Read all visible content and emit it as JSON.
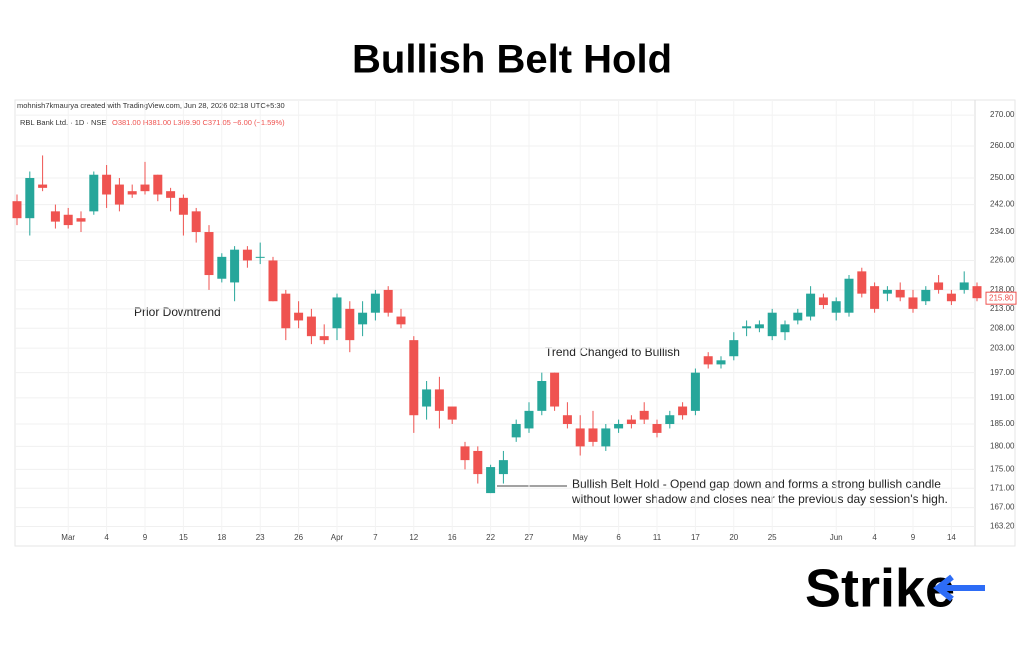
{
  "chart_data": {
    "type": "candlestick",
    "title": "Bullish Belt Hold",
    "credit": "mohnish7kmaurya created with TradingView.com, Jun 28, 2026 02:18 UTC+5:30",
    "symbol": "RBL Bank Ltd. · 1D · NSE",
    "ohlc_header": "O381.00 H381.00 L369.90 C371.05 −6.00 (−1.59%)",
    "annotations": [
      "Prior Downtrend",
      "Trend Changed to Bullish",
      "Bullish Belt Hold - Opend gap down and forms a strong bullish candle",
      "without lower shadow and closes near the previous day session's high."
    ],
    "logo": "Strike",
    "log_scale": true,
    "up_color": "#26a69a",
    "down_color": "#ef5350",
    "categories": [
      null,
      null,
      null,
      null,
      "Mar",
      null,
      null,
      "4",
      null,
      null,
      "9",
      null,
      null,
      "15",
      null,
      null,
      "18",
      null,
      null,
      "23",
      null,
      null,
      "26",
      null,
      null,
      "Apr",
      null,
      null,
      "7",
      null,
      null,
      "12",
      null,
      null,
      "16",
      null,
      null,
      "22",
      null,
      null,
      "27",
      null,
      null,
      null,
      "May",
      null,
      null,
      "6",
      null,
      null,
      "11",
      null,
      null,
      "17",
      null,
      null,
      "20",
      null,
      null,
      "25",
      null,
      null,
      null,
      null,
      "Jun",
      null,
      null,
      "4",
      null,
      null,
      "9",
      null,
      null,
      "14",
      null,
      null
    ],
    "open": [
      243,
      238,
      248,
      240,
      239,
      238,
      240,
      251,
      248,
      246,
      248,
      251,
      246,
      244,
      240,
      234,
      221,
      220,
      229,
      227,
      226,
      217,
      212,
      211,
      206,
      208,
      213,
      209,
      212,
      218,
      211,
      205,
      189,
      193,
      189,
      180,
      179,
      170,
      174,
      182,
      184,
      188,
      197,
      187,
      184,
      184,
      180,
      184,
      186,
      188,
      185,
      185,
      189,
      188,
      201,
      199,
      201,
      208,
      208,
      206,
      207,
      210,
      211,
      216,
      212,
      212,
      223,
      219,
      217,
      218,
      216,
      215,
      220,
      217,
      218,
      219
    ],
    "high": [
      245,
      252,
      257,
      242,
      241,
      240,
      252,
      254,
      250,
      248,
      255,
      251,
      247,
      245,
      241,
      236,
      228,
      230,
      230,
      231,
      227,
      218,
      215,
      213,
      209,
      217,
      215,
      215,
      218,
      219,
      213,
      206,
      195,
      196,
      189,
      181,
      180,
      176,
      179,
      186,
      190,
      197,
      197,
      190,
      187,
      188,
      185,
      186,
      187,
      190,
      186,
      188,
      190,
      198,
      202,
      201,
      207,
      210,
      210,
      213,
      210,
      213,
      219,
      217,
      216,
      222,
      224,
      220,
      219,
      220,
      218,
      219,
      222,
      218,
      223,
      220
    ],
    "low": [
      236,
      233,
      246,
      235,
      235,
      234,
      239,
      241,
      240,
      244,
      245,
      243,
      240,
      233,
      231,
      218,
      220,
      215,
      224,
      225,
      215,
      205,
      208,
      204,
      204,
      205,
      202,
      206,
      210,
      211,
      208,
      183,
      186,
      184,
      185,
      175,
      172,
      170,
      172,
      181,
      183,
      187,
      188,
      184,
      178,
      180,
      179,
      183,
      184,
      185,
      182,
      184,
      186,
      187,
      198,
      198,
      200,
      206,
      207,
      205,
      205,
      209,
      210,
      213,
      210,
      211,
      216,
      212,
      215,
      215,
      212,
      214,
      217,
      214,
      217,
      215
    ],
    "close": [
      238,
      250,
      247,
      237,
      236,
      237,
      251,
      245,
      242,
      245,
      246,
      245,
      244,
      239,
      234,
      222,
      227,
      229,
      226,
      227,
      215,
      208,
      210,
      206,
      205,
      216,
      205,
      212,
      217,
      212,
      209,
      187,
      193,
      188,
      186,
      177,
      174,
      175.5,
      177,
      185,
      188,
      195,
      189,
      185,
      180,
      181,
      184,
      185,
      185,
      186,
      183,
      187,
      187,
      197,
      199,
      200,
      205,
      208.5,
      209,
      212,
      209,
      212,
      217,
      214,
      215,
      221,
      217,
      213,
      218,
      216,
      213,
      218,
      218,
      215,
      220,
      215.8
    ],
    "last_price_label": "215.80",
    "ylim": [
      161.5,
      270.7
    ],
    "yticks": [
      {
        "value": 270,
        "label": "270.00"
      },
      {
        "value": 260,
        "label": "260.00"
      },
      {
        "value": 250,
        "label": "250.00"
      },
      {
        "value": 242,
        "label": "242.00"
      },
      {
        "value": 234,
        "label": "234.00"
      },
      {
        "value": 226,
        "label": "226.00"
      },
      {
        "value": 218,
        "label": "218.00"
      },
      {
        "value": 213,
        "label": "213.00"
      },
      {
        "value": 208,
        "label": "208.00"
      },
      {
        "value": 203,
        "label": "203.00"
      },
      {
        "value": 197,
        "label": "197.00"
      },
      {
        "value": 191,
        "label": "191.00"
      },
      {
        "value": 185,
        "label": "185.00"
      },
      {
        "value": 180,
        "label": "180.00"
      },
      {
        "value": 175,
        "label": "175.00"
      },
      {
        "value": 171,
        "label": "171.00"
      },
      {
        "value": 167,
        "label": "167.00"
      },
      {
        "value": 163.2,
        "label": "163.20"
      }
    ],
    "grid": true
  }
}
